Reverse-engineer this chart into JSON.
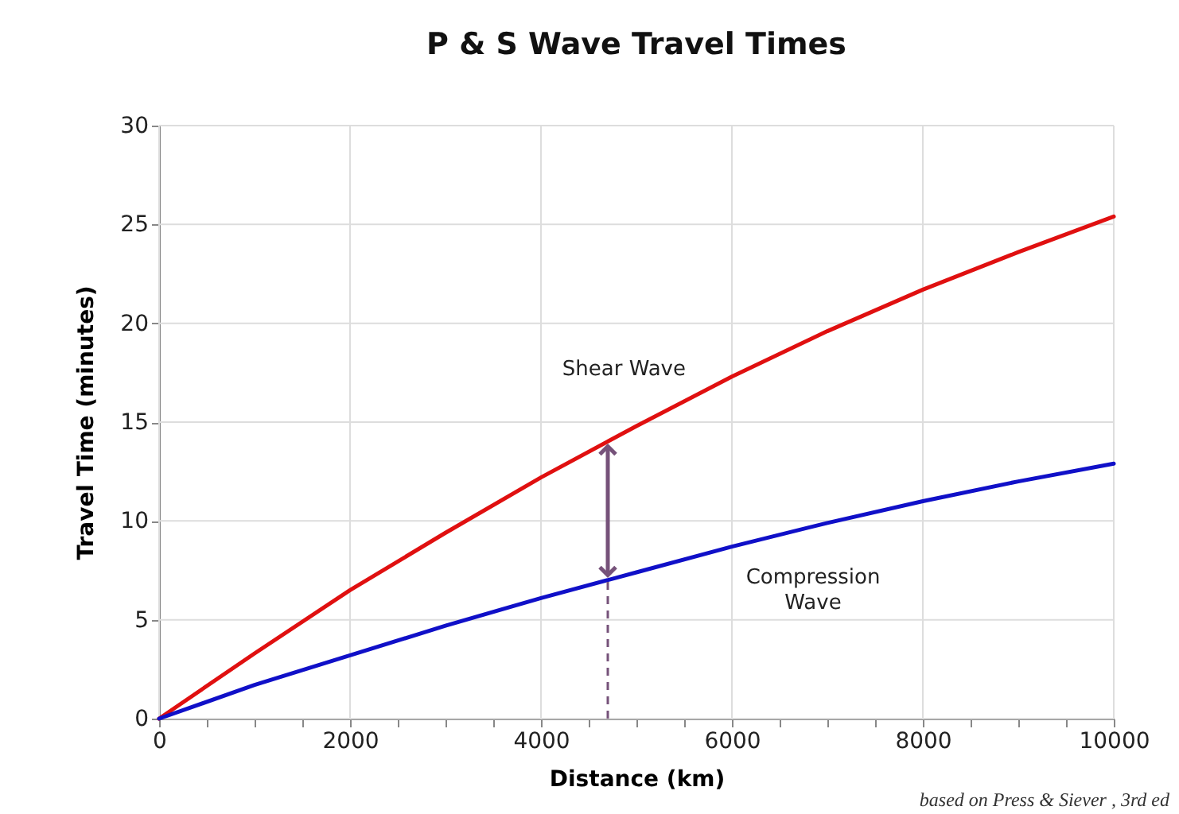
{
  "chart_data": {
    "type": "line",
    "title": "P & S Wave Travel Times",
    "xlabel": "Distance (km)",
    "ylabel": "Travel Time (minutes)",
    "x": [
      0,
      1000,
      2000,
      3000,
      4000,
      5000,
      6000,
      7000,
      8000,
      9000,
      10000
    ],
    "series": [
      {
        "name": "Shear Wave",
        "color": "#e01010",
        "values": [
          0,
          3.3,
          6.5,
          9.4,
          12.2,
          14.8,
          17.3,
          19.6,
          21.7,
          23.6,
          25.4
        ]
      },
      {
        "name": "Compression Wave",
        "color": "#1010c8",
        "values": [
          0,
          1.7,
          3.2,
          4.7,
          6.1,
          7.4,
          8.7,
          9.9,
          11.0,
          12.0,
          12.9
        ]
      }
    ],
    "xlim": [
      0,
      10000
    ],
    "ylim": [
      0,
      30
    ],
    "xticks": [
      0,
      {
        "value": 500,
        "label": null
      },
      {
        "value": 1000,
        "label": null
      },
      {
        "value": 1500,
        "label": null
      },
      2000,
      {
        "value": 2500,
        "label": null
      },
      {
        "value": 3000,
        "label": null
      },
      {
        "value": 3500,
        "label": null
      },
      4000,
      {
        "value": 4500,
        "label": null
      },
      {
        "value": 5000,
        "label": null
      },
      {
        "value": 5500,
        "label": null
      },
      6000,
      {
        "value": 6500,
        "label": null
      },
      {
        "value": 7000,
        "label": null
      },
      {
        "value": 7500,
        "label": null
      },
      8000,
      {
        "value": 8500,
        "label": null
      },
      {
        "value": 9000,
        "label": null
      },
      {
        "value": 9500,
        "label": null
      },
      10000
    ],
    "yticks": [
      0,
      5,
      10,
      15,
      20,
      25,
      30
    ],
    "grid": true,
    "ref_lines": [
      {
        "axis": "x",
        "value": 4700,
        "color": "#76527a",
        "line_style": "dashed"
      }
    ],
    "annotations": [
      "based on Press & Siever , 3rd ed"
    ]
  }
}
